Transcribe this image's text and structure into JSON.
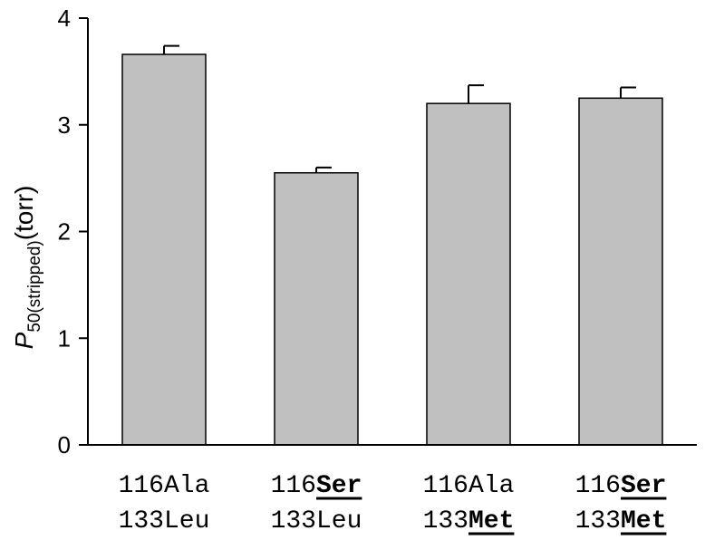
{
  "chart_data": {
    "type": "bar",
    "ylabel": {
      "symbol": "P",
      "subscript": "50(stripped)",
      "suffix": "(torr)"
    },
    "ylim": [
      0,
      4
    ],
    "yticks": [
      "0",
      "1",
      "2",
      "3",
      "4"
    ],
    "grid": false,
    "categories": [
      {
        "line1": {
          "prefix": "116",
          "residue": "Ala",
          "mutated": false
        },
        "line2": {
          "prefix": "133",
          "residue": "Leu",
          "mutated": false
        }
      },
      {
        "line1": {
          "prefix": "116",
          "residue": "Ser",
          "mutated": true
        },
        "line2": {
          "prefix": "133",
          "residue": "Leu",
          "mutated": false
        }
      },
      {
        "line1": {
          "prefix": "116",
          "residue": "Ala",
          "mutated": false
        },
        "line2": {
          "prefix": "133",
          "residue": "Met",
          "mutated": true
        }
      },
      {
        "line1": {
          "prefix": "116",
          "residue": "Ser",
          "mutated": true
        },
        "line2": {
          "prefix": "133",
          "residue": "Met",
          "mutated": true
        }
      }
    ],
    "values": [
      3.66,
      2.55,
      3.2,
      3.25
    ],
    "errors": [
      0.08,
      0.05,
      0.17,
      0.1
    ],
    "bar_color": "#c0c0c0",
    "edge_color": "#000000"
  }
}
